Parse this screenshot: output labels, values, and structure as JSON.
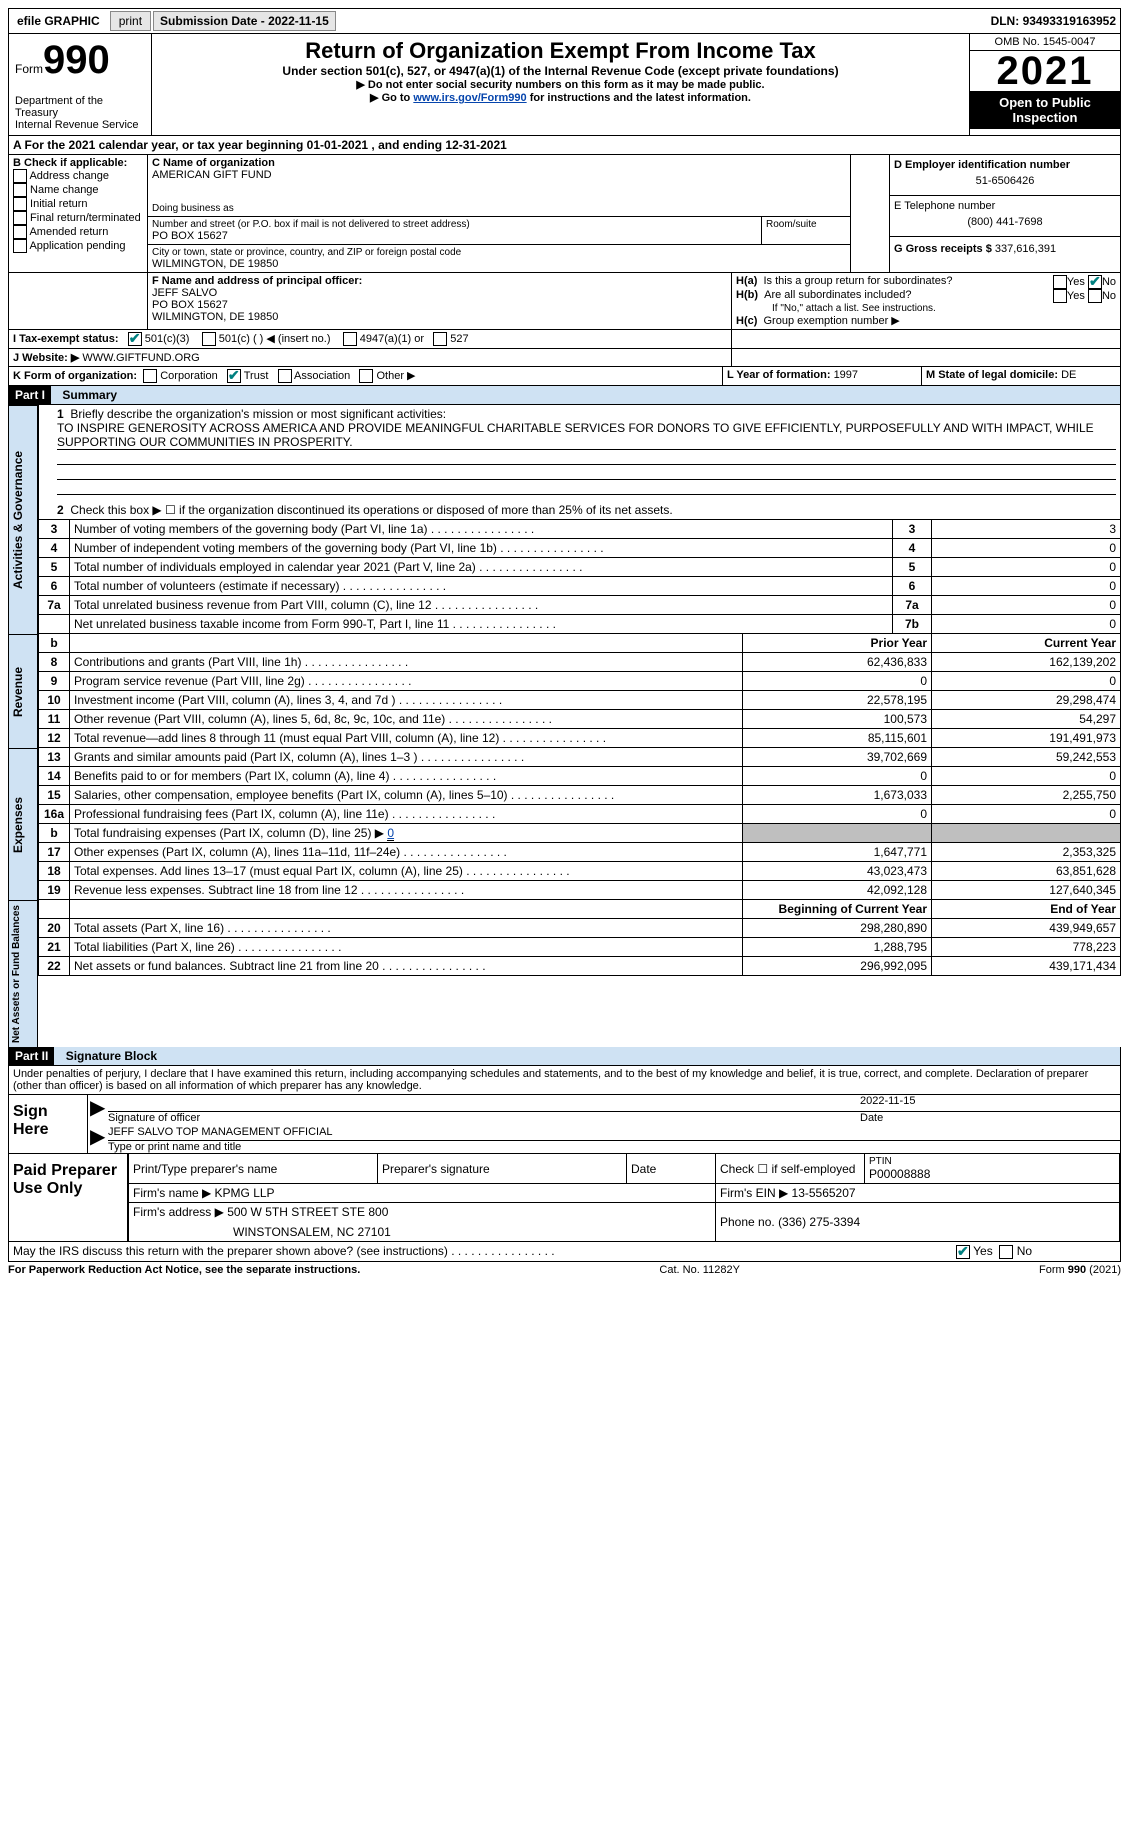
{
  "topbar": {
    "efile": "efile GRAPHIC",
    "print": "print",
    "submission_label": "Submission Date - ",
    "submission_date": "2022-11-15",
    "dln_label": "DLN: ",
    "dln": "93493319163952"
  },
  "header": {
    "form_label": "Form",
    "form_no": "990",
    "dept": "Department of the Treasury",
    "irs": "Internal Revenue Service",
    "title": "Return of Organization Exempt From Income Tax",
    "subtitle": "Under section 501(c), 527, or 4947(a)(1) of the Internal Revenue Code (except private foundations)",
    "note1": "▶ Do not enter social security numbers on this form as it may be made public.",
    "note2_pre": "▶ Go to ",
    "note2_link": "www.irs.gov/Form990",
    "note2_post": " for instructions and the latest information.",
    "omb": "OMB No. 1545-0047",
    "year": "2021",
    "open_public": "Open to Public Inspection"
  },
  "periodA": {
    "text_pre": "A For the 2021 calendar year, or tax year beginning ",
    "begin": "01-01-2021",
    "mid": " , and ending ",
    "end": "12-31-2021"
  },
  "sectionB": {
    "label": "B Check if applicable:",
    "opts": [
      "Address change",
      "Name change",
      "Initial return",
      "Final return/terminated",
      "Amended return",
      "Application pending"
    ]
  },
  "sectionC": {
    "name_lbl": "C Name of organization",
    "name": "AMERICAN GIFT FUND",
    "dba_lbl": "Doing business as",
    "dba": "",
    "street_lbl": "Number and street (or P.O. box if mail is not delivered to street address)",
    "room_lbl": "Room/suite",
    "street": "PO BOX 15627",
    "city_lbl": "City or town, state or province, country, and ZIP or foreign postal code",
    "city": "WILMINGTON, DE  19850"
  },
  "sectionD": {
    "lbl": "D Employer identification number",
    "val": "51-6506426"
  },
  "sectionE": {
    "lbl": "E Telephone number",
    "val": "(800) 441-7698"
  },
  "sectionG": {
    "lbl": "G Gross receipts $ ",
    "val": "337,616,391"
  },
  "sectionF": {
    "lbl": "F  Name and address of principal officer:",
    "name": "JEFF SALVO",
    "addr1": "PO BOX 15627",
    "addr2": "WILMINGTON, DE  19850"
  },
  "sectionH": {
    "a_lbl": "H(a)  Is this a group return for subordinates?",
    "yes": "Yes",
    "no": "No",
    "b_lbl": "H(b)  Are all subordinates included?",
    "b_note": "If \"No,\" attach a list. See instructions.",
    "c_lbl": "H(c)  Group exemption number ▶"
  },
  "sectionI": {
    "lbl": "I   Tax-exempt status:",
    "c3": "501(c)(3)",
    "c_other": "501(c) (  ) ◀ (insert no.)",
    "a4947": "4947(a)(1) or",
    "s527": "527"
  },
  "sectionJ": {
    "lbl": "J   Website: ▶ ",
    "val": "WWW.GIFTFUND.ORG"
  },
  "sectionK": {
    "lbl": "K Form of organization:",
    "opts": [
      "Corporation",
      "Trust",
      "Association",
      "Other ▶"
    ],
    "checked": 1
  },
  "sectionL": {
    "lbl": "L Year of formation: ",
    "val": "1997"
  },
  "sectionM": {
    "lbl": "M State of legal domicile: ",
    "val": "DE"
  },
  "part1": {
    "hdr": "Part I",
    "title": "Summary",
    "q1_lbl": "1",
    "q1": "Briefly describe the organization's mission or most significant activities:",
    "q1_val": "TO INSPIRE GENEROSITY ACROSS AMERICA AND PROVIDE MEANINGFUL CHARITABLE SERVICES FOR DONORS TO GIVE EFFICIENTLY, PURPOSEFULLY AND WITH IMPACT, WHILE SUPPORTING OUR COMMUNITIES IN PROSPERITY.",
    "q2": "Check this box ▶ ☐ if the organization discontinued its operations or disposed of more than 25% of its net assets.",
    "tabs": {
      "gov": "Activities & Governance",
      "rev": "Revenue",
      "exp": "Expenses",
      "net": "Net Assets or Fund Balances"
    },
    "gov_rows": [
      {
        "n": "3",
        "t": "Number of voting members of the governing body (Part VI, line 1a)",
        "box": "3",
        "v": "3"
      },
      {
        "n": "4",
        "t": "Number of independent voting members of the governing body (Part VI, line 1b)",
        "box": "4",
        "v": "0"
      },
      {
        "n": "5",
        "t": "Total number of individuals employed in calendar year 2021 (Part V, line 2a)",
        "box": "5",
        "v": "0"
      },
      {
        "n": "6",
        "t": "Total number of volunteers (estimate if necessary)",
        "box": "6",
        "v": "0"
      },
      {
        "n": "7a",
        "t": "Total unrelated business revenue from Part VIII, column (C), line 12",
        "box": "7a",
        "v": "0"
      },
      {
        "n": "",
        "t": "Net unrelated business taxable income from Form 990-T, Part I, line 11",
        "box": "7b",
        "v": "0"
      }
    ],
    "col_hdr": {
      "prior": "Prior Year",
      "current": "Current Year"
    },
    "rev_rows": [
      {
        "n": "8",
        "t": "Contributions and grants (Part VIII, line 1h)",
        "p": "62,436,833",
        "c": "162,139,202"
      },
      {
        "n": "9",
        "t": "Program service revenue (Part VIII, line 2g)",
        "p": "0",
        "c": "0"
      },
      {
        "n": "10",
        "t": "Investment income (Part VIII, column (A), lines 3, 4, and 7d )",
        "p": "22,578,195",
        "c": "29,298,474"
      },
      {
        "n": "11",
        "t": "Other revenue (Part VIII, column (A), lines 5, 6d, 8c, 9c, 10c, and 11e)",
        "p": "100,573",
        "c": "54,297"
      },
      {
        "n": "12",
        "t": "Total revenue—add lines 8 through 11 (must equal Part VIII, column (A), line 12)",
        "p": "85,115,601",
        "c": "191,491,973"
      }
    ],
    "exp_rows": [
      {
        "n": "13",
        "t": "Grants and similar amounts paid (Part IX, column (A), lines 1–3 )",
        "p": "39,702,669",
        "c": "59,242,553"
      },
      {
        "n": "14",
        "t": "Benefits paid to or for members (Part IX, column (A), line 4)",
        "p": "0",
        "c": "0"
      },
      {
        "n": "15",
        "t": "Salaries, other compensation, employee benefits (Part IX, column (A), lines 5–10)",
        "p": "1,673,033",
        "c": "2,255,750"
      },
      {
        "n": "16a",
        "t": "Professional fundraising fees (Part IX, column (A), line 11e)",
        "p": "0",
        "c": "0"
      },
      {
        "n": "b",
        "t": "Total fundraising expenses (Part IX, column (D), line 25) ▶",
        "v": "0",
        "grey": true
      },
      {
        "n": "17",
        "t": "Other expenses (Part IX, column (A), lines 11a–11d, 11f–24e)",
        "p": "1,647,771",
        "c": "2,353,325"
      },
      {
        "n": "18",
        "t": "Total expenses. Add lines 13–17 (must equal Part IX, column (A), line 25)",
        "p": "43,023,473",
        "c": "63,851,628"
      },
      {
        "n": "19",
        "t": "Revenue less expenses. Subtract line 18 from line 12",
        "p": "42,092,128",
        "c": "127,640,345"
      }
    ],
    "net_hdr": {
      "prior": "Beginning of Current Year",
      "current": "End of Year"
    },
    "net_rows": [
      {
        "n": "20",
        "t": "Total assets (Part X, line 16)",
        "p": "298,280,890",
        "c": "439,949,657"
      },
      {
        "n": "21",
        "t": "Total liabilities (Part X, line 26)",
        "p": "1,288,795",
        "c": "778,223"
      },
      {
        "n": "22",
        "t": "Net assets or fund balances. Subtract line 21 from line 20",
        "p": "296,992,095",
        "c": "439,171,434"
      }
    ]
  },
  "part2": {
    "hdr": "Part II",
    "title": "Signature Block",
    "decl": "Under penalties of perjury, I declare that I have examined this return, including accompanying schedules and statements, and to the best of my knowledge and belief, it is true, correct, and complete. Declaration of preparer (other than officer) is based on all information of which preparer has any knowledge.",
    "sign_here": "Sign Here",
    "sig_officer": "Signature of officer",
    "sig_date_lbl": "Date",
    "sig_date": "2022-11-15",
    "sig_name": "JEFF SALVO  TOP MANAGEMENT OFFICIAL",
    "sig_name_lbl": "Type or print name and title",
    "paid": "Paid Preparer Use Only",
    "prep_name_lbl": "Print/Type preparer's name",
    "prep_sig_lbl": "Preparer's signature",
    "prep_date_lbl": "Date",
    "prep_self_lbl": "Check ☐ if self-employed",
    "ptin_lbl": "PTIN",
    "ptin": "P00008888",
    "firm_name_lbl": "Firm's name    ▶ ",
    "firm_name": "KPMG LLP",
    "firm_ein_lbl": "Firm's EIN ▶ ",
    "firm_ein": "13-5565207",
    "firm_addr_lbl": "Firm's address ▶ ",
    "firm_addr1": "500 W 5TH STREET STE 800",
    "firm_addr2": "WINSTONSALEM, NC  27101",
    "phone_lbl": "Phone no. ",
    "phone": "(336) 275-3394",
    "discuss": "May the IRS discuss this return with the preparer shown above? (see instructions)",
    "yes": "Yes",
    "no": "No"
  },
  "footer": {
    "left": "For Paperwork Reduction Act Notice, see the separate instructions.",
    "mid": "Cat. No. 11282Y",
    "right": "Form 990 (2021)"
  }
}
